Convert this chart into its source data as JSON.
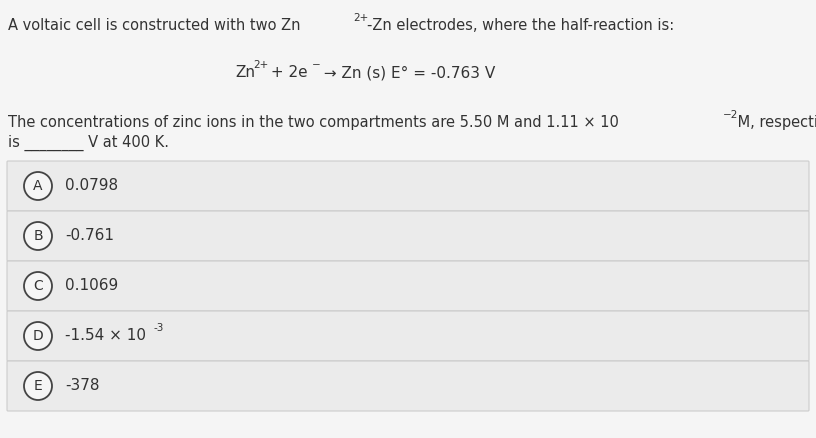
{
  "background_color": "#f5f5f5",
  "text_color": "#333333",
  "font_size_body": 10.5,
  "font_size_eq": 11,
  "font_size_choice": 11,
  "font_size_circle": 10,
  "font_size_super": 7.5,
  "choices": [
    {
      "label": "A",
      "text": "0.0798",
      "sup": null
    },
    {
      "label": "B",
      "text": "-0.761",
      "sup": null
    },
    {
      "label": "C",
      "text": "0.1069",
      "sup": null
    },
    {
      "label": "D",
      "text": "-1.54 × 10",
      "sup": "-3"
    },
    {
      "label": "E",
      "text": "-378",
      "sup": null
    }
  ],
  "choice_bg": "#ebebeb",
  "choice_border": "#cccccc",
  "circle_fill": "#f5f5f5",
  "circle_edge": "#444444",
  "circle_lw": 1.3
}
